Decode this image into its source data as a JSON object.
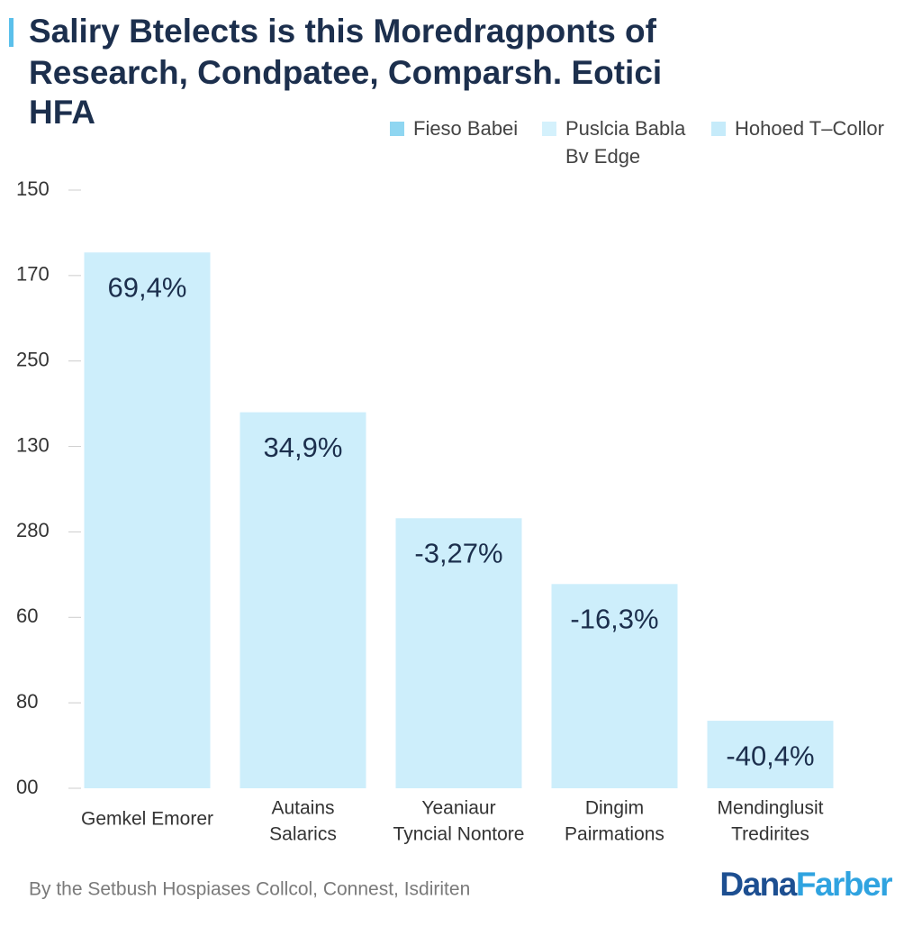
{
  "chart_data": {
    "type": "bar",
    "title": [
      "Saliry Btelects is this Moredragponts of",
      "Research, Condpatee, Comparsh. Eotici",
      "HFA"
    ],
    "legend": [
      {
        "name": [
          "Fieso Babei"
        ],
        "color": "#8fd6f1"
      },
      {
        "name": [
          "Puslcia Babla",
          "Bv Edge"
        ],
        "color": "#d4f1fc"
      },
      {
        "name": [
          "Hohoed T–Collor"
        ],
        "color": "#c6ebfa"
      }
    ],
    "categories": [
      [
        "Gemkel Emorer"
      ],
      [
        "Autains",
        "Salarics"
      ],
      [
        "Yeaniaur",
        "Tyncial Nontore"
      ],
      [
        "Dingim",
        "Pairmations"
      ],
      [
        "Mendinglusit",
        "Tredirites"
      ]
    ],
    "values": [
      6.27,
      4.4,
      3.16,
      2.39,
      0.79
    ],
    "bar_annotations": [
      "69,4%",
      "34,9%",
      "-3,27%",
      "-16,3%",
      "-40,4%"
    ],
    "color": "#cdeefb",
    "ylim": [
      0,
      7
    ],
    "yticks": [
      {
        "value": 0,
        "label": "00"
      },
      {
        "value": 1,
        "label": "80"
      },
      {
        "value": 2,
        "label": "60"
      },
      {
        "value": 3,
        "label": "280"
      },
      {
        "value": 4,
        "label": "130"
      },
      {
        "value": 5,
        "label": "250"
      },
      {
        "value": 6,
        "label": "170"
      },
      {
        "value": 7,
        "label": "150"
      }
    ],
    "source": "By the Setbush Hospiases Collcol, Connest, Isdiriten",
    "logo": {
      "first": "Dana",
      "second": "Farber"
    }
  }
}
